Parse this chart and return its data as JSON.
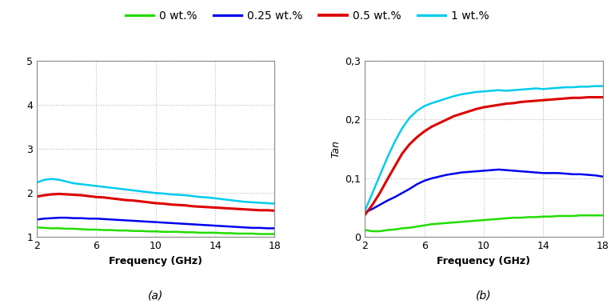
{
  "legend_labels": [
    "0 wt.%",
    "0.25 wt.%",
    "0.5 wt.%",
    "1 wt.%"
  ],
  "legend_colors": [
    "#22dd00",
    "#0000ee",
    "#dd0000",
    "#00ccee"
  ],
  "legend_linewidths": [
    1.8,
    1.8,
    2.2,
    1.8
  ],
  "freq": [
    2.0,
    2.5,
    3.0,
    3.5,
    4.0,
    4.5,
    5.0,
    5.5,
    6.0,
    6.5,
    7.0,
    7.5,
    8.0,
    8.5,
    9.0,
    9.5,
    10.0,
    10.5,
    11.0,
    11.5,
    12.0,
    12.5,
    13.0,
    13.5,
    14.0,
    14.5,
    15.0,
    15.5,
    16.0,
    16.5,
    17.0,
    17.5,
    18.0
  ],
  "permittivity": {
    "0wt": [
      1.22,
      1.21,
      1.2,
      1.2,
      1.19,
      1.19,
      1.18,
      1.17,
      1.17,
      1.16,
      1.16,
      1.15,
      1.15,
      1.14,
      1.14,
      1.13,
      1.13,
      1.12,
      1.12,
      1.12,
      1.11,
      1.11,
      1.1,
      1.1,
      1.1,
      1.09,
      1.09,
      1.08,
      1.08,
      1.08,
      1.07,
      1.07,
      1.07
    ],
    "025wt": [
      1.4,
      1.42,
      1.43,
      1.44,
      1.44,
      1.43,
      1.43,
      1.42,
      1.42,
      1.41,
      1.4,
      1.39,
      1.38,
      1.37,
      1.36,
      1.35,
      1.34,
      1.33,
      1.32,
      1.31,
      1.3,
      1.29,
      1.28,
      1.27,
      1.26,
      1.25,
      1.24,
      1.23,
      1.22,
      1.21,
      1.21,
      1.2,
      1.2
    ],
    "05wt": [
      1.92,
      1.95,
      1.97,
      1.98,
      1.97,
      1.96,
      1.95,
      1.93,
      1.91,
      1.9,
      1.88,
      1.86,
      1.84,
      1.83,
      1.81,
      1.79,
      1.77,
      1.76,
      1.74,
      1.73,
      1.72,
      1.7,
      1.69,
      1.68,
      1.67,
      1.66,
      1.65,
      1.64,
      1.63,
      1.62,
      1.61,
      1.61,
      1.6
    ],
    "1wt": [
      2.24,
      2.3,
      2.32,
      2.3,
      2.26,
      2.22,
      2.2,
      2.18,
      2.16,
      2.14,
      2.12,
      2.1,
      2.08,
      2.06,
      2.04,
      2.02,
      2.0,
      1.99,
      1.97,
      1.96,
      1.95,
      1.93,
      1.91,
      1.9,
      1.88,
      1.86,
      1.84,
      1.82,
      1.8,
      1.79,
      1.78,
      1.77,
      1.76
    ]
  },
  "tan": {
    "0wt": [
      0.012,
      0.01,
      0.01,
      0.012,
      0.013,
      0.015,
      0.016,
      0.018,
      0.02,
      0.022,
      0.023,
      0.024,
      0.025,
      0.026,
      0.027,
      0.028,
      0.029,
      0.03,
      0.031,
      0.032,
      0.033,
      0.033,
      0.034,
      0.034,
      0.035,
      0.035,
      0.036,
      0.036,
      0.036,
      0.037,
      0.037,
      0.037,
      0.037
    ],
    "025wt": [
      0.042,
      0.048,
      0.055,
      0.062,
      0.068,
      0.075,
      0.082,
      0.09,
      0.096,
      0.1,
      0.103,
      0.106,
      0.108,
      0.11,
      0.111,
      0.112,
      0.113,
      0.114,
      0.115,
      0.114,
      0.113,
      0.112,
      0.111,
      0.11,
      0.109,
      0.109,
      0.109,
      0.108,
      0.107,
      0.107,
      0.106,
      0.105,
      0.103
    ],
    "05wt": [
      0.038,
      0.055,
      0.075,
      0.098,
      0.12,
      0.142,
      0.158,
      0.17,
      0.18,
      0.188,
      0.194,
      0.2,
      0.206,
      0.21,
      0.214,
      0.218,
      0.221,
      0.223,
      0.225,
      0.227,
      0.228,
      0.23,
      0.231,
      0.232,
      0.233,
      0.234,
      0.235,
      0.236,
      0.237,
      0.237,
      0.238,
      0.238,
      0.238
    ],
    "1wt": [
      0.045,
      0.075,
      0.105,
      0.135,
      0.162,
      0.185,
      0.203,
      0.215,
      0.223,
      0.228,
      0.232,
      0.236,
      0.24,
      0.243,
      0.245,
      0.247,
      0.248,
      0.249,
      0.25,
      0.249,
      0.25,
      0.251,
      0.252,
      0.253,
      0.252,
      0.253,
      0.254,
      0.255,
      0.255,
      0.256,
      0.256,
      0.257,
      0.257
    ]
  },
  "ax_a": {
    "xlabel": "Frequency (GHz)",
    "ylabel": "",
    "xlim": [
      2,
      18
    ],
    "ylim": [
      1,
      5
    ],
    "yticks": [
      1,
      2,
      3,
      4,
      5
    ],
    "ytick_labels": [
      "1",
      "2",
      "3",
      "4",
      "5"
    ],
    "xticks": [
      2,
      6,
      10,
      14,
      18
    ],
    "caption": "(a)"
  },
  "ax_b": {
    "xlabel": "Frequency (GHz)",
    "ylabel": "Tan",
    "xlim": [
      2,
      18
    ],
    "ylim": [
      0,
      0.3
    ],
    "yticks": [
      0,
      0.1,
      0.2,
      0.3
    ],
    "ytick_labels": [
      "0",
      "0,1",
      "0,2",
      "0,3"
    ],
    "xticks": [
      2,
      6,
      10,
      14,
      18
    ],
    "caption": "(b)"
  },
  "background_color": "#ffffff",
  "grid_color": "#bbbbbb",
  "spine_color": "#888888"
}
